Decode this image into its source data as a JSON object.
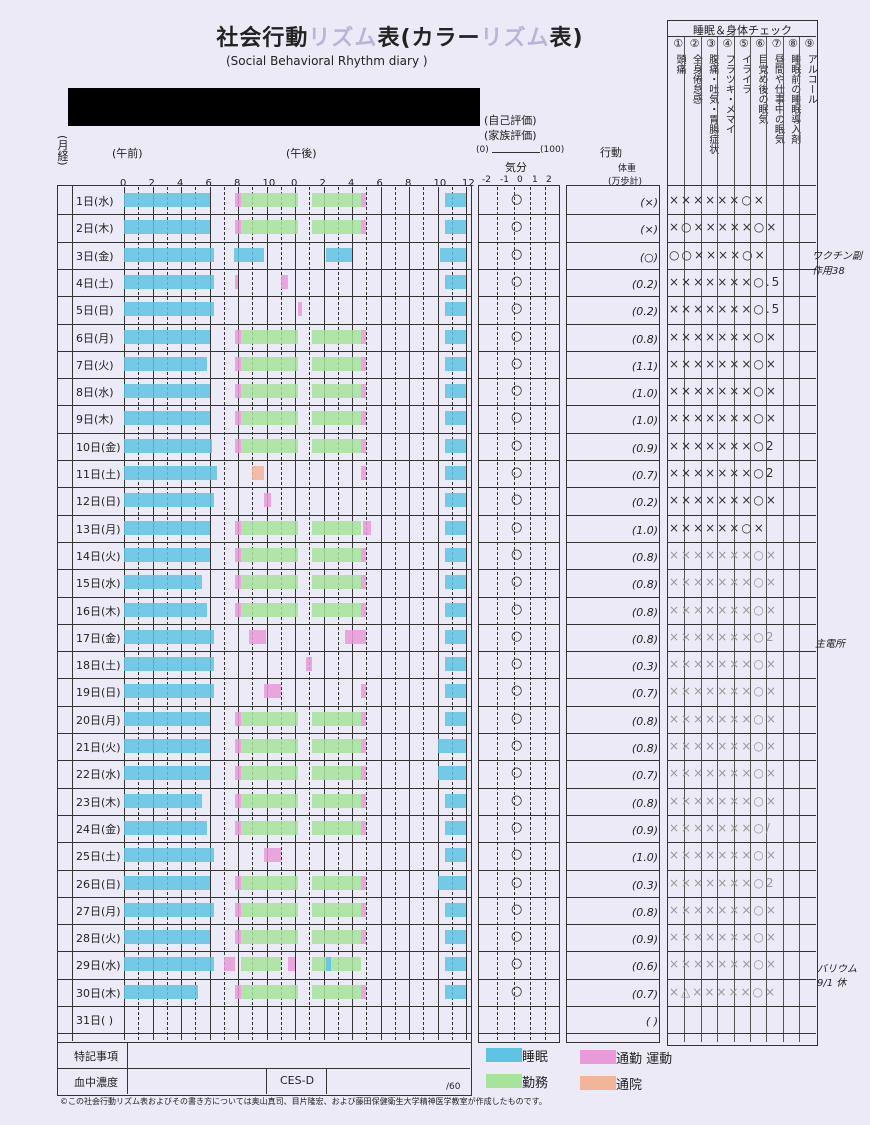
{
  "header": {
    "title_a": "社会行動",
    "title_b": "リズム",
    "title_c": "表(カラー",
    "title_d": "リズム",
    "title_e": "表)",
    "subtitle": "(Social Behavioral Rhythm diary )",
    "self_eval": "(自己評価)",
    "family_eval": "(家族評価)",
    "scale_left": "(0)",
    "scale_right": "(100)",
    "mood_label": "気分",
    "mood_ticks": [
      "-2",
      "-1",
      "0",
      "1",
      "2"
    ],
    "action_label": "行動",
    "weight_label": "体重",
    "steps_label": "(万歩計)",
    "month_label": "(月経)",
    "am_label": "(午前)",
    "pm_label": "(午後)",
    "hour_ticks": [
      "0",
      "2",
      "4",
      "6",
      "8",
      "10",
      "0",
      "2",
      "4",
      "6",
      "8",
      "10",
      "12"
    ]
  },
  "check": {
    "title": "睡眠＆身体チェック",
    "nums": [
      "①",
      "②",
      "③",
      "④",
      "⑤",
      "⑥",
      "⑦",
      "⑧",
      "⑨"
    ],
    "cols": [
      "頭痛",
      "全身倦怠感",
      "腹痛・吐気・胃腸症状",
      "フラツキ・メマイ",
      "イライラ",
      "目覚め後の眠気",
      "昼間や仕事中の眠気",
      "睡眠前の睡眠導入剤",
      "アルコール"
    ]
  },
  "days": [
    {
      "label": "1日(水)",
      "mood": "○",
      "weight": "(×)",
      "checks": "××××××○×",
      "light": false
    },
    {
      "label": "2日(木)",
      "mood": "○",
      "weight": "(×)",
      "checks": "×○×××××○×",
      "light": false
    },
    {
      "label": "3日(金)",
      "mood": "○",
      "weight": "(○)",
      "checks": "○○××××○×",
      "light": false
    },
    {
      "label": "4日(土)",
      "mood": "○",
      "weight": "(0.2)",
      "checks": "×××××××○.5",
      "light": false
    },
    {
      "label": "5日(日)",
      "mood": "○",
      "weight": "(0.2)",
      "checks": "×××××××○.5",
      "light": false
    },
    {
      "label": "6日(月)",
      "mood": "○",
      "weight": "(0.8)",
      "checks": "×××××××○×",
      "light": false
    },
    {
      "label": "7日(火)",
      "mood": "○",
      "weight": "(1.1)",
      "checks": "×××××××○×",
      "light": false
    },
    {
      "label": "8日(水)",
      "mood": "○",
      "weight": "(1.0)",
      "checks": "×××××××○×",
      "light": false
    },
    {
      "label": "9日(木)",
      "mood": "○",
      "weight": "(1.0)",
      "checks": "×××××××○×",
      "light": false
    },
    {
      "label": "10日(金)",
      "mood": "○",
      "weight": "(0.9)",
      "checks": "×××××××○2",
      "light": false
    },
    {
      "label": "11日(土)",
      "mood": "○",
      "weight": "(0.7)",
      "checks": "×××××××○2",
      "light": false
    },
    {
      "label": "12日(日)",
      "mood": "○",
      "weight": "(0.2)",
      "checks": "×××××××○×",
      "light": false
    },
    {
      "label": "13日(月)",
      "mood": "○",
      "weight": "(1.0)",
      "checks": "××××××○×",
      "light": false
    },
    {
      "label": "14日(火)",
      "mood": "○",
      "weight": "(0.8)",
      "checks": "×××××××○×",
      "light": true
    },
    {
      "label": "15日(水)",
      "mood": "○",
      "weight": "(0.8)",
      "checks": "×××××××○×",
      "light": true
    },
    {
      "label": "16日(木)",
      "mood": "○",
      "weight": "(0.8)",
      "checks": "×××××××○×",
      "light": true
    },
    {
      "label": "17日(金)",
      "mood": "○",
      "weight": "(0.8)",
      "checks": "×××××××○2",
      "light": true
    },
    {
      "label": "18日(土)",
      "mood": "○",
      "weight": "(0.3)",
      "checks": "×××××××○×",
      "light": true
    },
    {
      "label": "19日(日)",
      "mood": "○",
      "weight": "(0.7)",
      "checks": "×××××××○×",
      "light": true
    },
    {
      "label": "20日(月)",
      "mood": "○",
      "weight": "(0.8)",
      "checks": "×××××××○×",
      "light": true
    },
    {
      "label": "21日(火)",
      "mood": "○",
      "weight": "(0.8)",
      "checks": "×××××××○×",
      "light": true
    },
    {
      "label": "22日(水)",
      "mood": "○",
      "weight": "(0.7)",
      "checks": "×××××××○×",
      "light": true
    },
    {
      "label": "23日(木)",
      "mood": "○",
      "weight": "(0.8)",
      "checks": "×××××××○×",
      "light": true
    },
    {
      "label": "24日(金)",
      "mood": "○",
      "weight": "(0.9)",
      "checks": "×××××××○/",
      "light": true
    },
    {
      "label": "25日(土)",
      "mood": "○",
      "weight": "(1.0)",
      "checks": "×××××××○×",
      "light": true
    },
    {
      "label": "26日(日)",
      "mood": "○",
      "weight": "(0.3)",
      "checks": "×××××××○2",
      "light": true
    },
    {
      "label": "27日(月)",
      "mood": "○",
      "weight": "(0.8)",
      "checks": "×××××××○×",
      "light": true
    },
    {
      "label": "28日(火)",
      "mood": "○",
      "weight": "(0.9)",
      "checks": "×××××××○×",
      "light": true
    },
    {
      "label": "29日(水)",
      "mood": "○",
      "weight": "(0.6)",
      "checks": "×××××××○×",
      "light": true
    },
    {
      "label": "30日(木)",
      "mood": "○",
      "weight": "(0.7)",
      "checks": "×△×××××○×",
      "light": true
    },
    {
      "label": "31日( )",
      "mood": "",
      "weight": "( )",
      "checks": "",
      "light": false
    }
  ],
  "bars": [
    [
      [
        "s",
        0,
        6
      ],
      [
        "c",
        7.8,
        8.2
      ],
      [
        "w",
        8.2,
        12.2
      ],
      [
        "w",
        13.2,
        16.6
      ],
      [
        "c",
        16.6,
        17
      ],
      [
        "s",
        22.5,
        24
      ]
    ],
    [
      [
        "s",
        0,
        6
      ],
      [
        "c",
        7.8,
        8.2
      ],
      [
        "w",
        8.2,
        12.2
      ],
      [
        "w",
        13.2,
        16.6
      ],
      [
        "c",
        16.6,
        17
      ],
      [
        "s",
        22.5,
        24
      ]
    ],
    [
      [
        "s",
        0,
        6.3
      ],
      [
        "s",
        7.7,
        9.8
      ],
      [
        "s",
        14.2,
        16
      ],
      [
        "s",
        22.2,
        24
      ]
    ],
    [
      [
        "s",
        0,
        6.3
      ],
      [
        "c",
        7.8,
        8
      ],
      [
        "c",
        11,
        11.5
      ],
      [
        "s",
        22.5,
        24
      ]
    ],
    [
      [
        "s",
        0,
        6.3
      ],
      [
        "c",
        12.2,
        12.5
      ],
      [
        "s",
        22.5,
        24
      ]
    ],
    [
      [
        "s",
        0,
        6
      ],
      [
        "c",
        7.8,
        8.2
      ],
      [
        "w",
        8.2,
        12.2
      ],
      [
        "w",
        13.2,
        16.6
      ],
      [
        "c",
        16.6,
        17
      ],
      [
        "s",
        22.5,
        24
      ]
    ],
    [
      [
        "s",
        0,
        5.8
      ],
      [
        "c",
        7.8,
        8.2
      ],
      [
        "w",
        8.2,
        12.2
      ],
      [
        "w",
        13.2,
        16.6
      ],
      [
        "c",
        16.6,
        17
      ],
      [
        "s",
        22.5,
        24
      ]
    ],
    [
      [
        "s",
        0,
        6
      ],
      [
        "c",
        7.8,
        8.2
      ],
      [
        "w",
        8.2,
        12.2
      ],
      [
        "w",
        13.2,
        16.6
      ],
      [
        "c",
        16.6,
        17
      ],
      [
        "s",
        22.5,
        24
      ]
    ],
    [
      [
        "s",
        0,
        6
      ],
      [
        "c",
        7.8,
        8.2
      ],
      [
        "w",
        8.2,
        12.2
      ],
      [
        "w",
        13.2,
        16.6
      ],
      [
        "c",
        16.6,
        17
      ],
      [
        "s",
        22.5,
        24
      ]
    ],
    [
      [
        "s",
        0,
        6.2
      ],
      [
        "c",
        7.8,
        8.2
      ],
      [
        "w",
        8.2,
        12.2
      ],
      [
        "w",
        13.2,
        16.6
      ],
      [
        "c",
        16.6,
        17
      ],
      [
        "s",
        22.5,
        24
      ]
    ],
    [
      [
        "s",
        0,
        6.5
      ],
      [
        "h",
        9,
        9.8
      ],
      [
        "c",
        16.6,
        17
      ],
      [
        "s",
        22.5,
        24
      ]
    ],
    [
      [
        "s",
        0,
        6.3
      ],
      [
        "c",
        9.8,
        10.3
      ],
      [
        "s",
        22.5,
        24
      ]
    ],
    [
      [
        "s",
        0,
        6
      ],
      [
        "c",
        7.8,
        8.2
      ],
      [
        "w",
        8.2,
        12.2
      ],
      [
        "w",
        13.2,
        16.6
      ],
      [
        "c",
        16.8,
        17.3
      ],
      [
        "s",
        22.5,
        24
      ]
    ],
    [
      [
        "s",
        0,
        6
      ],
      [
        "c",
        7.8,
        8.2
      ],
      [
        "w",
        8.2,
        12.2
      ],
      [
        "w",
        13.2,
        16.6
      ],
      [
        "c",
        16.6,
        17
      ],
      [
        "s",
        22.5,
        24
      ]
    ],
    [
      [
        "s",
        0,
        5.5
      ],
      [
        "c",
        7.8,
        8.2
      ],
      [
        "w",
        8.2,
        12.2
      ],
      [
        "w",
        13.2,
        16.6
      ],
      [
        "c",
        16.6,
        17
      ],
      [
        "s",
        22.5,
        24
      ]
    ],
    [
      [
        "s",
        0,
        5.8
      ],
      [
        "c",
        7.8,
        8.2
      ],
      [
        "w",
        8.2,
        12.2
      ],
      [
        "w",
        13.2,
        16.6
      ],
      [
        "c",
        16.6,
        17
      ],
      [
        "s",
        22.5,
        24
      ]
    ],
    [
      [
        "s",
        0,
        6.3
      ],
      [
        "c",
        8.8,
        10
      ],
      [
        "c",
        15.5,
        17
      ],
      [
        "s",
        22.5,
        24
      ]
    ],
    [
      [
        "s",
        0,
        6.3
      ],
      [
        "c",
        12.8,
        13.2
      ],
      [
        "s",
        22.5,
        24
      ]
    ],
    [
      [
        "s",
        0,
        6.3
      ],
      [
        "c",
        9.8,
        11
      ],
      [
        "c",
        16.6,
        17
      ],
      [
        "s",
        22.5,
        24
      ]
    ],
    [
      [
        "s",
        0,
        6
      ],
      [
        "c",
        7.8,
        8.2
      ],
      [
        "w",
        8.2,
        12.2
      ],
      [
        "w",
        13.2,
        16.6
      ],
      [
        "c",
        16.6,
        17
      ],
      [
        "s",
        22.5,
        24
      ]
    ],
    [
      [
        "s",
        0,
        6
      ],
      [
        "c",
        7.8,
        8.2
      ],
      [
        "w",
        8.2,
        12.2
      ],
      [
        "w",
        13.2,
        16.6
      ],
      [
        "c",
        16.6,
        17
      ],
      [
        "s",
        22,
        24
      ]
    ],
    [
      [
        "s",
        0,
        6
      ],
      [
        "c",
        7.8,
        8.2
      ],
      [
        "w",
        8.2,
        12.2
      ],
      [
        "w",
        13.2,
        16.6
      ],
      [
        "c",
        16.6,
        17
      ],
      [
        "s",
        22,
        24
      ]
    ],
    [
      [
        "s",
        0,
        5.5
      ],
      [
        "c",
        7.8,
        8.2
      ],
      [
        "w",
        8.2,
        12.2
      ],
      [
        "w",
        13.2,
        16.6
      ],
      [
        "c",
        16.6,
        17
      ],
      [
        "s",
        22.5,
        24
      ]
    ],
    [
      [
        "s",
        0,
        5.8
      ],
      [
        "c",
        7.8,
        8.2
      ],
      [
        "w",
        8.2,
        12.2
      ],
      [
        "w",
        13.2,
        16.6
      ],
      [
        "c",
        16.6,
        17
      ],
      [
        "s",
        22.5,
        24
      ]
    ],
    [
      [
        "s",
        0,
        6.3
      ],
      [
        "c",
        9.8,
        11
      ],
      [
        "s",
        22.5,
        24
      ]
    ],
    [
      [
        "s",
        0,
        6
      ],
      [
        "c",
        7.8,
        8.2
      ],
      [
        "w",
        8.2,
        12.2
      ],
      [
        "w",
        13.2,
        16.6
      ],
      [
        "c",
        16.6,
        17
      ],
      [
        "s",
        22,
        24
      ]
    ],
    [
      [
        "s",
        0,
        6.3
      ],
      [
        "c",
        7.8,
        8.2
      ],
      [
        "w",
        8.2,
        12.2
      ],
      [
        "w",
        13.2,
        16.6
      ],
      [
        "c",
        16.6,
        17
      ],
      [
        "s",
        22.5,
        24
      ]
    ],
    [
      [
        "s",
        0,
        6
      ],
      [
        "c",
        7.8,
        8.2
      ],
      [
        "w",
        8.2,
        12.2
      ],
      [
        "w",
        13.2,
        16.6
      ],
      [
        "c",
        16.6,
        17
      ],
      [
        "s",
        22.5,
        24
      ]
    ],
    [
      [
        "s",
        0,
        6.3
      ],
      [
        "c",
        7,
        7.8
      ],
      [
        "w",
        8.2,
        11
      ],
      [
        "w",
        13.2,
        16.6
      ],
      [
        "c",
        11.5,
        12
      ],
      [
        "s",
        14.2,
        14.5
      ],
      [
        "s",
        22.5,
        24
      ]
    ],
    [
      [
        "s",
        0,
        5.2
      ],
      [
        "c",
        7.8,
        8.2
      ],
      [
        "w",
        8.2,
        12.2
      ],
      [
        "w",
        13.2,
        16.6
      ],
      [
        "c",
        16.6,
        17
      ],
      [
        "s",
        22.5,
        24
      ]
    ],
    []
  ],
  "notes": {
    "n3": "ワクチン副作用",
    "n3b": "38",
    "n17": "主電所",
    "n29": "バリウム",
    "n29b": "9/1 休"
  },
  "footer": {
    "special": "特記事項",
    "blood": "血中濃度",
    "cesd": "CES-D",
    "cesd_max": "/60",
    "legend_sleep": "睡眠",
    "legend_commute": "通勤 運動",
    "legend_work": "勤務",
    "legend_hospital": "通院",
    "copyright": "©この社会行動リズム表およびその書き方については奥山真司、目片隆宏、および藤田保健衛生大学精神医学教室が作成したものです。"
  },
  "colors": {
    "sleep": "#5fc3e4",
    "work": "#a7e39b",
    "commute": "#e99ad8",
    "hospital": "#f3b59a"
  }
}
